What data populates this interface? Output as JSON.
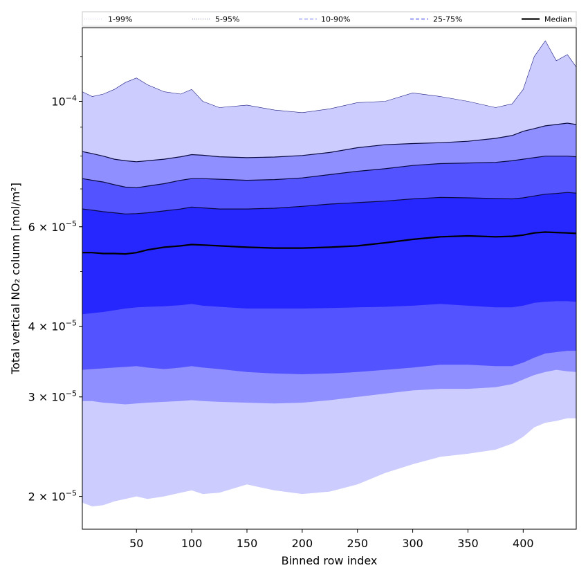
{
  "chart_data": {
    "type": "area",
    "xlabel": "Binned row index",
    "ylabel": "Total vertical NO₂ column [mol/m²]",
    "x_scale": "linear",
    "y_scale": "log",
    "xlim": [
      1,
      448
    ],
    "ylim": [
      1.75e-05,
      0.000135
    ],
    "x_ticks": [
      50,
      100,
      150,
      200,
      250,
      300,
      350,
      400
    ],
    "y_ticks": [
      {
        "value": 2e-05,
        "mantissa": "2",
        "exponent": "−5"
      },
      {
        "value": 3e-05,
        "mantissa": "3",
        "exponent": "−5"
      },
      {
        "value": 4e-05,
        "mantissa": "4",
        "exponent": "−5"
      },
      {
        "value": 6e-05,
        "mantissa": "6",
        "exponent": "−5"
      },
      {
        "value": 0.0001,
        "mantissa": "10",
        "exponent": "−4"
      }
    ],
    "legend_position": "top",
    "legend": [
      {
        "label": "1-99%",
        "style": "dotted",
        "color": "#d8d8f8"
      },
      {
        "label": "5-95%",
        "style": "dotted",
        "color": "#8a8ab8"
      },
      {
        "label": "10-90%",
        "style": "dashed",
        "color": "#8888ff"
      },
      {
        "label": "25-75%",
        "style": "dashed",
        "color": "#4a4af0"
      },
      {
        "label": "Median",
        "style": "solid",
        "color": "#000000"
      }
    ],
    "bands": [
      {
        "name": "5-95%",
        "fill": "#ccccff"
      },
      {
        "name": "10-90%",
        "fill": "#8f8fff"
      },
      {
        "name": "25-75%",
        "fill": "#5353ff"
      },
      {
        "name": "core",
        "fill": "#2626ff"
      }
    ],
    "x": [
      1,
      10,
      20,
      30,
      40,
      50,
      60,
      75,
      90,
      100,
      110,
      125,
      150,
      175,
      200,
      225,
      250,
      275,
      300,
      325,
      350,
      375,
      390,
      400,
      410,
      420,
      430,
      440,
      448
    ],
    "series": [
      {
        "name": "Median",
        "values": [
          5.4e-05,
          5.4e-05,
          5.38e-05,
          5.38e-05,
          5.37e-05,
          5.4e-05,
          5.46e-05,
          5.52e-05,
          5.55e-05,
          5.58e-05,
          5.57e-05,
          5.55e-05,
          5.52e-05,
          5.5e-05,
          5.5e-05,
          5.52e-05,
          5.55e-05,
          5.62e-05,
          5.7e-05,
          5.76e-05,
          5.78e-05,
          5.76e-05,
          5.77e-05,
          5.8e-05,
          5.85e-05,
          5.87e-05,
          5.86e-05,
          5.85e-05,
          5.84e-05
        ]
      },
      {
        "name": "25-75% upper",
        "values": [
          6.45e-05,
          6.42e-05,
          6.38e-05,
          6.35e-05,
          6.32e-05,
          6.33e-05,
          6.35e-05,
          6.4e-05,
          6.45e-05,
          6.5e-05,
          6.48e-05,
          6.45e-05,
          6.45e-05,
          6.47e-05,
          6.52e-05,
          6.58e-05,
          6.62e-05,
          6.66e-05,
          6.72e-05,
          6.76e-05,
          6.75e-05,
          6.73e-05,
          6.72e-05,
          6.75e-05,
          6.8e-05,
          6.85e-05,
          6.87e-05,
          6.9e-05,
          6.88e-05
        ]
      },
      {
        "name": "25-75% lower",
        "values": [
          4.2e-05,
          4.22e-05,
          4.24e-05,
          4.27e-05,
          4.3e-05,
          4.32e-05,
          4.33e-05,
          4.34e-05,
          4.36e-05,
          4.38e-05,
          4.35e-05,
          4.33e-05,
          4.3e-05,
          4.3e-05,
          4.3e-05,
          4.31e-05,
          4.32e-05,
          4.33e-05,
          4.35e-05,
          4.38e-05,
          4.35e-05,
          4.32e-05,
          4.32e-05,
          4.35e-05,
          4.4e-05,
          4.42e-05,
          4.43e-05,
          4.43e-05,
          4.42e-05
        ]
      },
      {
        "name": "10-90% upper",
        "values": [
          7.3e-05,
          7.25e-05,
          7.2e-05,
          7.12e-05,
          7.05e-05,
          7.03e-05,
          7.08e-05,
          7.15e-05,
          7.25e-05,
          7.3e-05,
          7.3e-05,
          7.28e-05,
          7.25e-05,
          7.27e-05,
          7.32e-05,
          7.42e-05,
          7.52e-05,
          7.6e-05,
          7.7e-05,
          7.76e-05,
          7.78e-05,
          7.8e-05,
          7.85e-05,
          7.9e-05,
          7.95e-05,
          8e-05,
          8e-05,
          8e-05,
          7.98e-05
        ]
      },
      {
        "name": "10-90% lower",
        "values": [
          3.35e-05,
          3.36e-05,
          3.37e-05,
          3.38e-05,
          3.39e-05,
          3.4e-05,
          3.38e-05,
          3.36e-05,
          3.38e-05,
          3.4e-05,
          3.38e-05,
          3.36e-05,
          3.32e-05,
          3.3e-05,
          3.29e-05,
          3.3e-05,
          3.32e-05,
          3.35e-05,
          3.38e-05,
          3.42e-05,
          3.42e-05,
          3.4e-05,
          3.4e-05,
          3.45e-05,
          3.52e-05,
          3.58e-05,
          3.6e-05,
          3.62e-05,
          3.62e-05
        ]
      },
      {
        "name": "5-95% upper",
        "values": [
          8.15e-05,
          8.08e-05,
          8e-05,
          7.9e-05,
          7.85e-05,
          7.82e-05,
          7.85e-05,
          7.9e-05,
          7.98e-05,
          8.05e-05,
          8.03e-05,
          7.98e-05,
          7.95e-05,
          7.97e-05,
          8.02e-05,
          8.12e-05,
          8.28e-05,
          8.38e-05,
          8.42e-05,
          8.45e-05,
          8.5e-05,
          8.6e-05,
          8.7e-05,
          8.85e-05,
          8.95e-05,
          9.05e-05,
          9.1e-05,
          9.15e-05,
          9.1e-05
        ]
      },
      {
        "name": "5-95% lower",
        "values": [
          2.95e-05,
          2.95e-05,
          2.93e-05,
          2.92e-05,
          2.91e-05,
          2.92e-05,
          2.93e-05,
          2.94e-05,
          2.95e-05,
          2.96e-05,
          2.95e-05,
          2.94e-05,
          2.93e-05,
          2.92e-05,
          2.93e-05,
          2.96e-05,
          3e-05,
          3.04e-05,
          3.08e-05,
          3.1e-05,
          3.1e-05,
          3.12e-05,
          3.16e-05,
          3.22e-05,
          3.28e-05,
          3.32e-05,
          3.35e-05,
          3.33e-05,
          3.32e-05
        ]
      },
      {
        "name": "1-99% upper",
        "values": [
          0.000104,
          0.000102,
          0.000103,
          0.000105,
          0.000108,
          0.00011,
          0.000107,
          0.000104,
          0.000103,
          0.000105,
          0.0001,
          9.75e-05,
          9.85e-05,
          9.65e-05,
          9.55e-05,
          9.7e-05,
          9.95e-05,
          0.0001,
          0.0001035,
          0.000102,
          0.0001,
          9.75e-05,
          9.9e-05,
          0.000105,
          0.00012,
          0.000128,
          0.000118,
          0.000121,
          0.000115
        ]
      },
      {
        "name": "1-99% lower",
        "values": [
          1.95e-05,
          1.92e-05,
          1.93e-05,
          1.96e-05,
          1.98e-05,
          2e-05,
          1.98e-05,
          2e-05,
          2.03e-05,
          2.05e-05,
          2.02e-05,
          2.03e-05,
          2.1e-05,
          2.05e-05,
          2.02e-05,
          2.04e-05,
          2.1e-05,
          2.2e-05,
          2.28e-05,
          2.35e-05,
          2.38e-05,
          2.42e-05,
          2.48e-05,
          2.55e-05,
          2.65e-05,
          2.7e-05,
          2.72e-05,
          2.75e-05,
          2.75e-05
        ]
      }
    ]
  }
}
